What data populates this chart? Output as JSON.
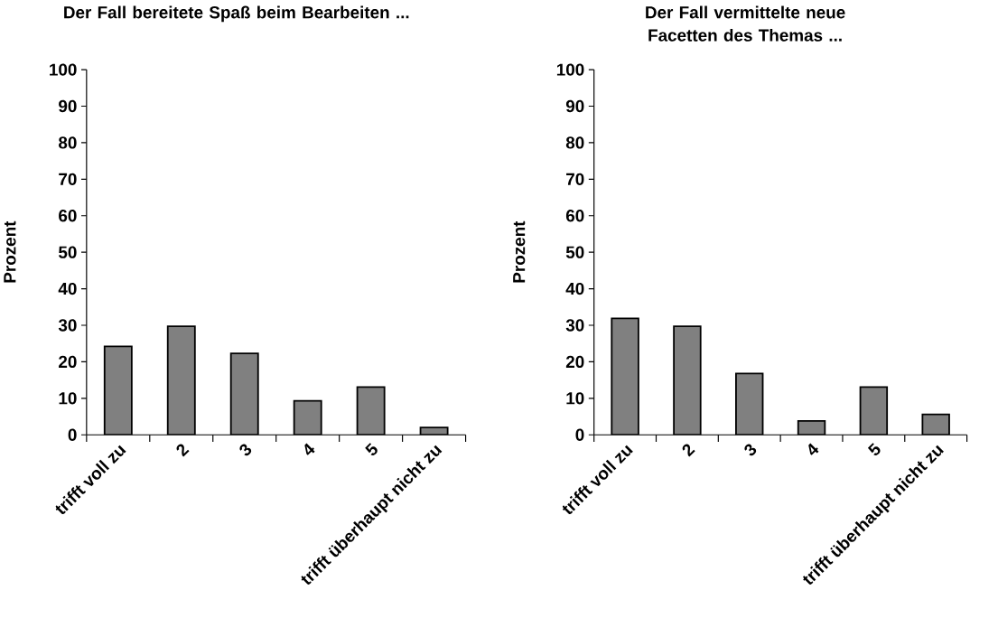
{
  "chart_data": [
    {
      "type": "bar",
      "title": "Der Fall bereitete Spaß beim Bearbeiten ...",
      "ylabel": "Prozent",
      "categories": [
        "trifft voll zu",
        "2",
        "3",
        "4",
        "5",
        "trifft überhaupt nicht zu"
      ],
      "values": [
        24.2,
        29.7,
        22.3,
        9.3,
        13.1,
        2
      ],
      "color": "#808080",
      "ylim": [
        0,
        100
      ],
      "yticks": [
        0,
        10,
        20,
        30,
        40,
        50,
        60,
        70,
        80,
        90,
        100
      ]
    },
    {
      "type": "bar",
      "title": "Der Fall vermittelte neue Facetten des Themas ...",
      "ylabel": "Prozent",
      "categories": [
        "trifft voll zu",
        "2",
        "3",
        "4",
        "5",
        "trifft überhaupt nicht zu"
      ],
      "values": [
        31.9,
        29.7,
        16.8,
        3.8,
        13.1,
        5.6
      ],
      "color": "#808080",
      "ylim": [
        0,
        100
      ],
      "yticks": [
        0,
        10,
        20,
        30,
        40,
        50,
        60,
        70,
        80,
        90,
        100
      ]
    }
  ]
}
